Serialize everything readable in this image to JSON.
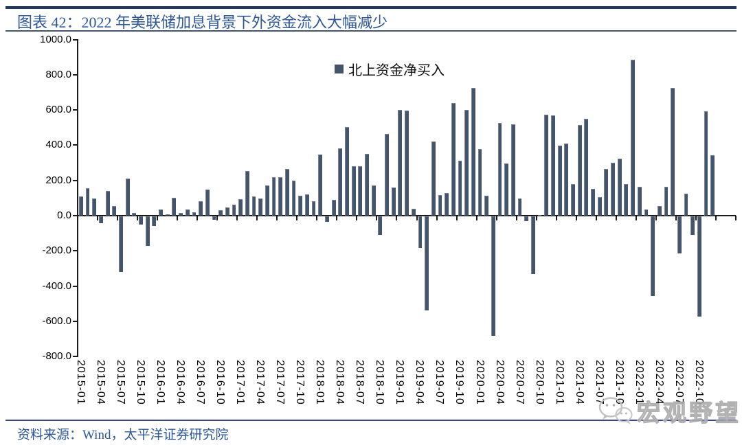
{
  "header": {
    "title": "图表 42：2022 年美联储加息背景下外资金流入大幅减少"
  },
  "footer": {
    "source": "资料来源：Wind，太平洋证券研究院"
  },
  "watermark": {
    "text": "宏观野望",
    "icon": "wechat-icon"
  },
  "colors": {
    "bar": "#44546A",
    "title_text": "#2B579A",
    "top_rule": "#1F3864",
    "title_rule": "#44546A",
    "bottom_rule": "#3C4393",
    "axis": "#1a1a1a",
    "watermark": "#ABABAB"
  },
  "chart_data": {
    "type": "bar",
    "title": "图表 42：2022 年美联储加息背景下外资金流入大幅减少",
    "legend": "北上资金净买入",
    "legend_position": "top-center",
    "grid": false,
    "ylim": [
      -800,
      1000
    ],
    "ytick_step": 200,
    "yticks": [
      1000,
      800,
      600,
      400,
      200,
      0,
      -200,
      -400,
      -600,
      -800
    ],
    "ytick_labels": [
      "1000.0",
      "800.0",
      "600.0",
      "400.0",
      "200.0",
      "0.0",
      "-200.0",
      "-400.0",
      "-600.0",
      "-800.0"
    ],
    "xlabel": "",
    "ylabel": "",
    "tick_labels": [
      "2015-01",
      "2015-04",
      "2015-07",
      "2015-10",
      "2016-01",
      "2016-04",
      "2016-07",
      "2016-10",
      "2017-01",
      "2017-04",
      "2017-07",
      "2017-10",
      "2018-01",
      "2018-04",
      "2018-07",
      "2018-10",
      "2019-01",
      "2019-04",
      "2019-07",
      "2019-10",
      "2020-01",
      "2020-04",
      "2020-07",
      "2020-10",
      "2021-01",
      "2021-04",
      "2021-07",
      "2021-10",
      "2022-01",
      "2022-04",
      "2022-07",
      "2022-10"
    ],
    "x": [
      "2015-01",
      "2015-02",
      "2015-03",
      "2015-04",
      "2015-05",
      "2015-06",
      "2015-07",
      "2015-08",
      "2015-09",
      "2015-10",
      "2015-11",
      "2015-12",
      "2016-01",
      "2016-02",
      "2016-03",
      "2016-04",
      "2016-05",
      "2016-06",
      "2016-07",
      "2016-08",
      "2016-09",
      "2016-10",
      "2016-11",
      "2016-12",
      "2017-01",
      "2017-02",
      "2017-03",
      "2017-04",
      "2017-05",
      "2017-06",
      "2017-07",
      "2017-08",
      "2017-09",
      "2017-10",
      "2017-11",
      "2017-12",
      "2018-01",
      "2018-02",
      "2018-03",
      "2018-04",
      "2018-05",
      "2018-06",
      "2018-07",
      "2018-08",
      "2018-09",
      "2018-10",
      "2018-11",
      "2018-12",
      "2019-01",
      "2019-02",
      "2019-03",
      "2019-04",
      "2019-05",
      "2019-06",
      "2019-07",
      "2019-08",
      "2019-09",
      "2019-10",
      "2019-11",
      "2019-12",
      "2020-01",
      "2020-02",
      "2020-03",
      "2020-04",
      "2020-05",
      "2020-06",
      "2020-07",
      "2020-08",
      "2020-09",
      "2020-10",
      "2020-11",
      "2020-12",
      "2021-01",
      "2021-02",
      "2021-03",
      "2021-04",
      "2021-05",
      "2021-06",
      "2021-07",
      "2021-08",
      "2021-09",
      "2021-10",
      "2021-11",
      "2021-12",
      "2022-01",
      "2022-02",
      "2022-03",
      "2022-04",
      "2022-05",
      "2022-06",
      "2022-07",
      "2022-08",
      "2022-09",
      "2022-10",
      "2022-11",
      "2022-12"
    ],
    "values": [
      110,
      155,
      97,
      -39,
      139,
      54,
      -316,
      210,
      17,
      -48,
      -168,
      -55,
      35,
      8,
      103,
      17,
      35,
      19,
      81,
      148,
      -19,
      32,
      45,
      64,
      93,
      254,
      110,
      97,
      170,
      217,
      219,
      264,
      200,
      112,
      120,
      81,
      348,
      -32,
      90,
      381,
      503,
      280,
      280,
      352,
      172,
      -107,
      464,
      159,
      600,
      597,
      39,
      -181,
      -536,
      422,
      116,
      128,
      641,
      313,
      600,
      726,
      378,
      112,
      -677,
      525,
      295,
      520,
      97,
      -26,
      -326,
      5,
      574,
      568,
      396,
      409,
      181,
      516,
      551,
      151,
      104,
      264,
      299,
      325,
      181,
      886,
      164,
      35,
      -451,
      55,
      164,
      726,
      -210,
      123,
      -107,
      -571,
      593,
      344
    ],
    "x_axis_extra_slots": 3
  }
}
